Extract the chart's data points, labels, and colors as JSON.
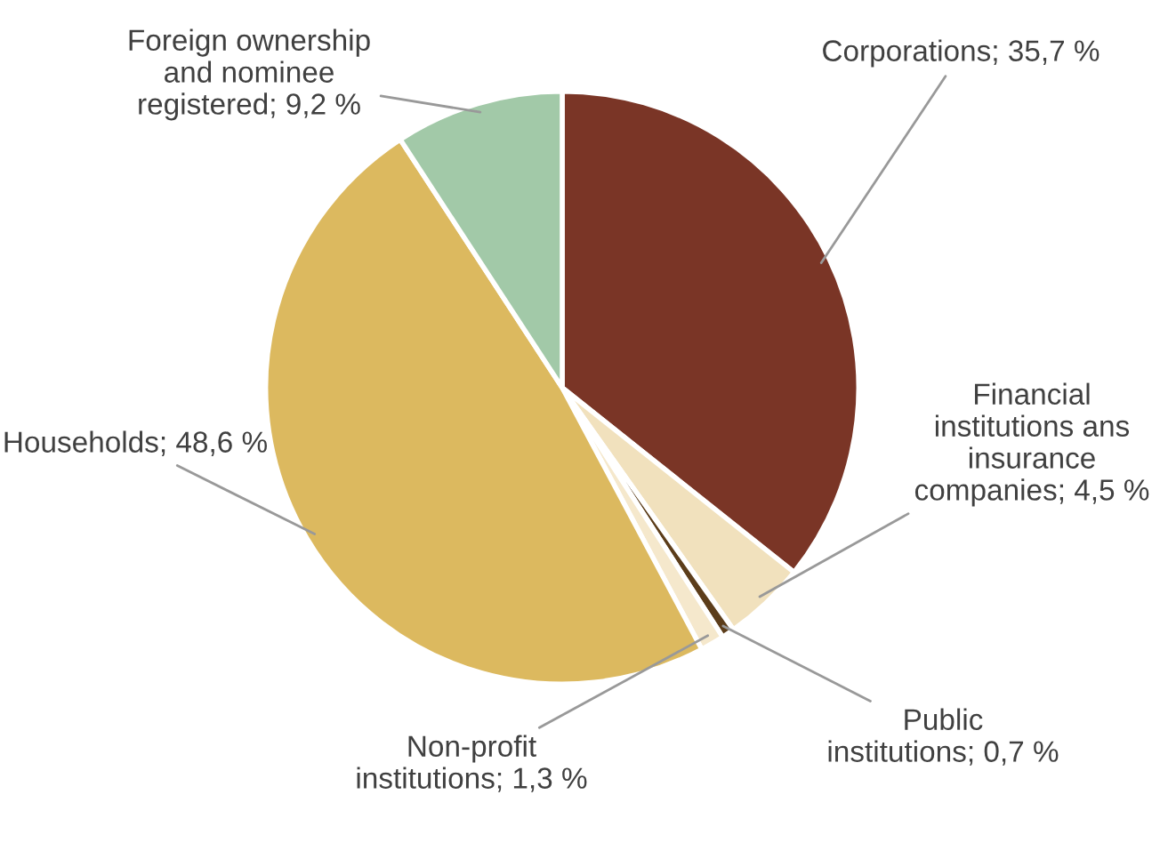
{
  "chart_data": {
    "type": "pie",
    "categories": [
      "Corporations",
      "Financial\ninstitutions ans\ninsurance\ncompanies",
      "Public\ninstitutions",
      "Non-profit\ninstitutions",
      "Households",
      "Foreign ownership\nand nominee\nregistered"
    ],
    "values": [
      35.7,
      4.5,
      0.7,
      1.3,
      48.6,
      9.2
    ],
    "value_labels": [
      "35,7 %",
      "4,5 %",
      "0,7 %",
      "1,3 %",
      "48,6 %",
      "9,2 %"
    ],
    "colors": [
      "#7a3526",
      "#f1e1bd",
      "#5c3d1a",
      "#f5e8cc",
      "#dcb95f",
      "#a2c9a8"
    ],
    "legend": false
  }
}
